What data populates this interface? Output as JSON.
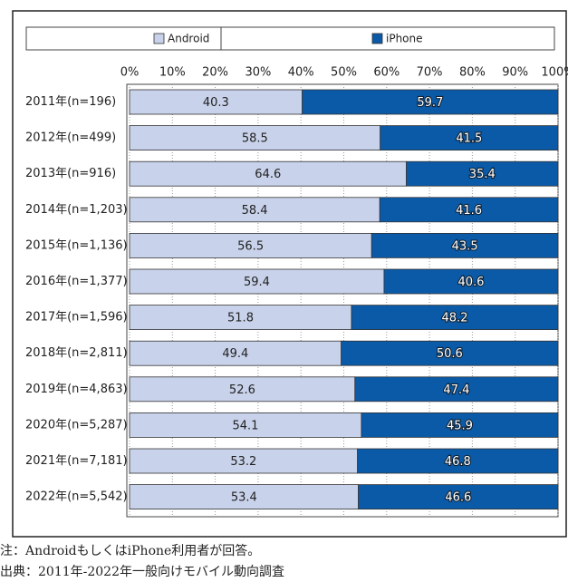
{
  "chart_data": {
    "type": "stacked_barh",
    "categories": [
      "2011年(n=196)",
      "2012年(n=499)",
      "2013年(n=916)",
      "2014年(n=1,203)",
      "2015年(n=1,136)",
      "2016年(n=1,377)",
      "2017年(n=1,596)",
      "2018年(n=2,811)",
      "2019年(n=4,863)",
      "2020年(n=5,287)",
      "2021年(n=7,181)",
      "2022年(n=5,542)"
    ],
    "series": [
      {
        "name": "Android",
        "color": "#c8d2ea",
        "values": [
          40.3,
          58.5,
          64.6,
          58.4,
          56.5,
          59.4,
          51.8,
          49.4,
          52.6,
          54.1,
          53.2,
          53.4
        ]
      },
      {
        "name": "iPhone",
        "color": "#0a5aa8",
        "values": [
          59.7,
          41.5,
          35.4,
          41.6,
          43.5,
          40.6,
          48.2,
          50.6,
          47.4,
          45.9,
          46.8,
          46.6
        ]
      }
    ],
    "xlim": [
      0,
      100
    ],
    "xticks": [
      {
        "value": 0,
        "label": "0%"
      },
      {
        "value": 10,
        "label": "10%"
      },
      {
        "value": 20,
        "label": "20%"
      },
      {
        "value": 30,
        "label": "30%"
      },
      {
        "value": 40,
        "label": "40%"
      },
      {
        "value": 50,
        "label": "50%"
      },
      {
        "value": 60,
        "label": "60%"
      },
      {
        "value": 70,
        "label": "70%"
      },
      {
        "value": 80,
        "label": "80%"
      },
      {
        "value": 90,
        "label": "90%"
      },
      {
        "value": 100,
        "label": "100%"
      }
    ],
    "grid": true,
    "legend": "top",
    "notes": [
      "注：AndroidもしくはiPhone利用者が回答。",
      "出典：2011年-2022年一般向けモバイル動向調査"
    ]
  }
}
